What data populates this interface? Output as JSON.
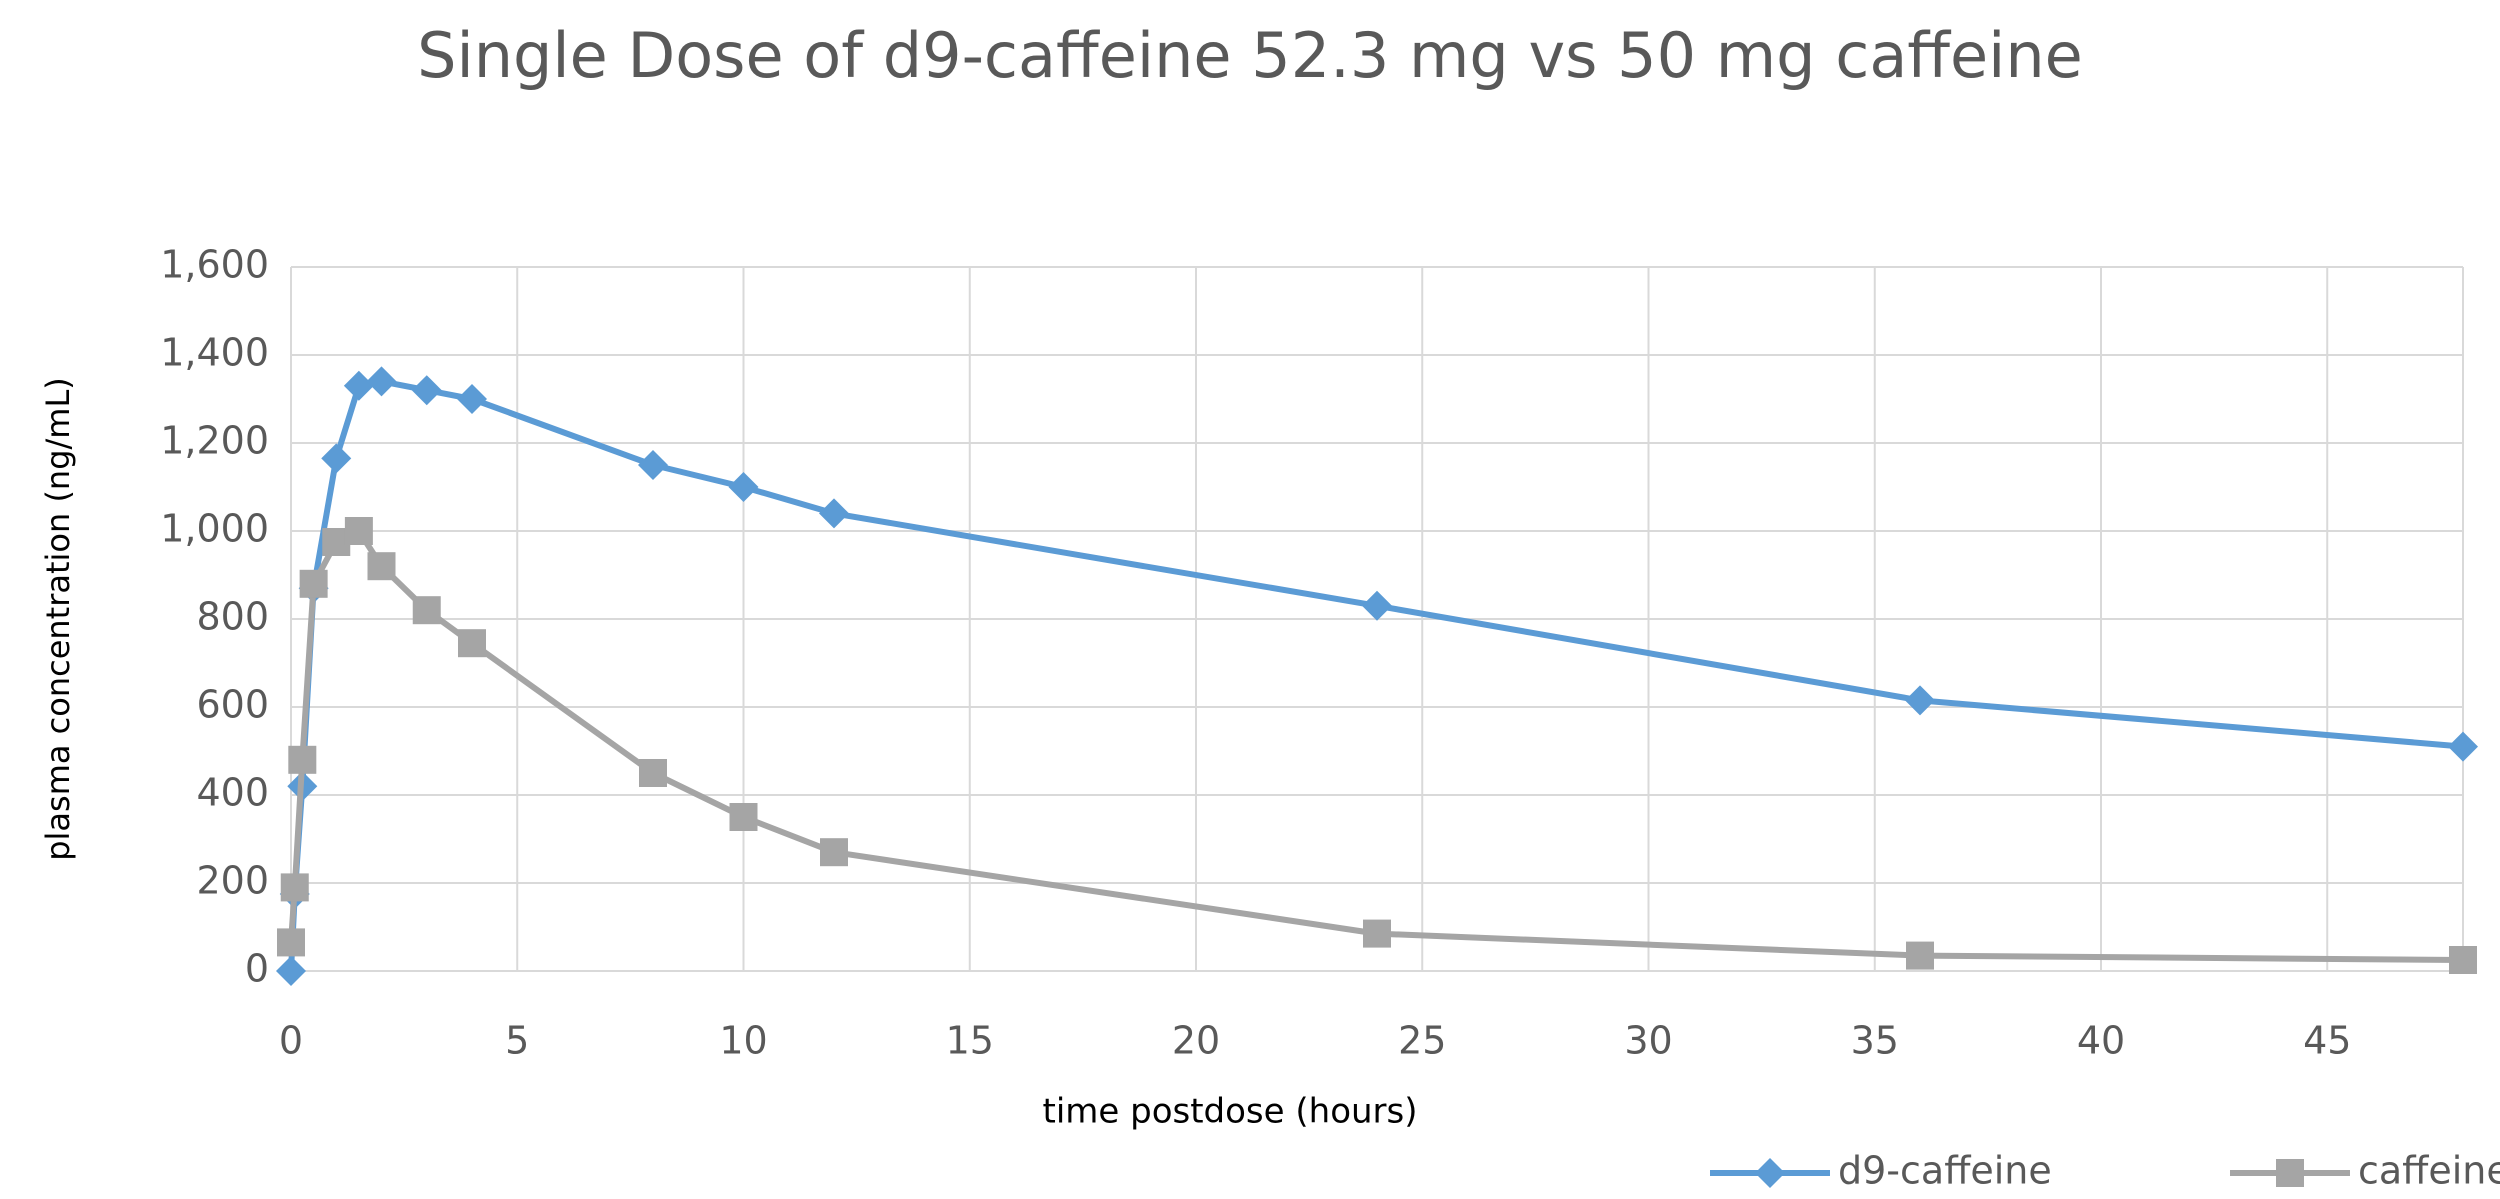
{
  "chart_data": {
    "type": "line",
    "title": "Single Dose of d9-caffeine 52.3 mg  vs 50 mg caffeine",
    "xlabel": "time postdose (hours)",
    "ylabel": "plasma concentration (ng/mL)",
    "x": [
      0,
      0.083,
      0.25,
      0.5,
      1,
      1.5,
      2,
      3,
      4,
      8,
      10,
      12,
      24,
      36,
      48
    ],
    "series": [
      {
        "name": "d9-caffeine",
        "color": "#5b9bd5",
        "marker": "diamond",
        "values": [
          0,
          175,
          420,
          870,
          1165,
          1330,
          1340,
          1320,
          1300,
          1150,
          1100,
          1040,
          830,
          615,
          510
        ]
      },
      {
        "name": "caffeine",
        "color": "#a5a5a5",
        "marker": "square",
        "values": [
          65,
          190,
          480,
          880,
          975,
          1000,
          920,
          820,
          745,
          450,
          350,
          270,
          85,
          35,
          25
        ]
      }
    ],
    "xlim": [
      0,
      48
    ],
    "xticks": [
      0,
      5,
      10,
      15,
      20,
      25,
      30,
      35,
      40,
      45
    ],
    "ylim": [
      0,
      1600
    ],
    "yticks": [
      0,
      200,
      400,
      600,
      800,
      {
        "value": 1000,
        "label": "1,000"
      },
      {
        "value": 1200,
        "label": "1,200"
      },
      {
        "value": 1400,
        "label": "1,400"
      },
      {
        "value": 1600,
        "label": "1,600"
      }
    ],
    "grid": true,
    "legend": "bottom-right"
  }
}
